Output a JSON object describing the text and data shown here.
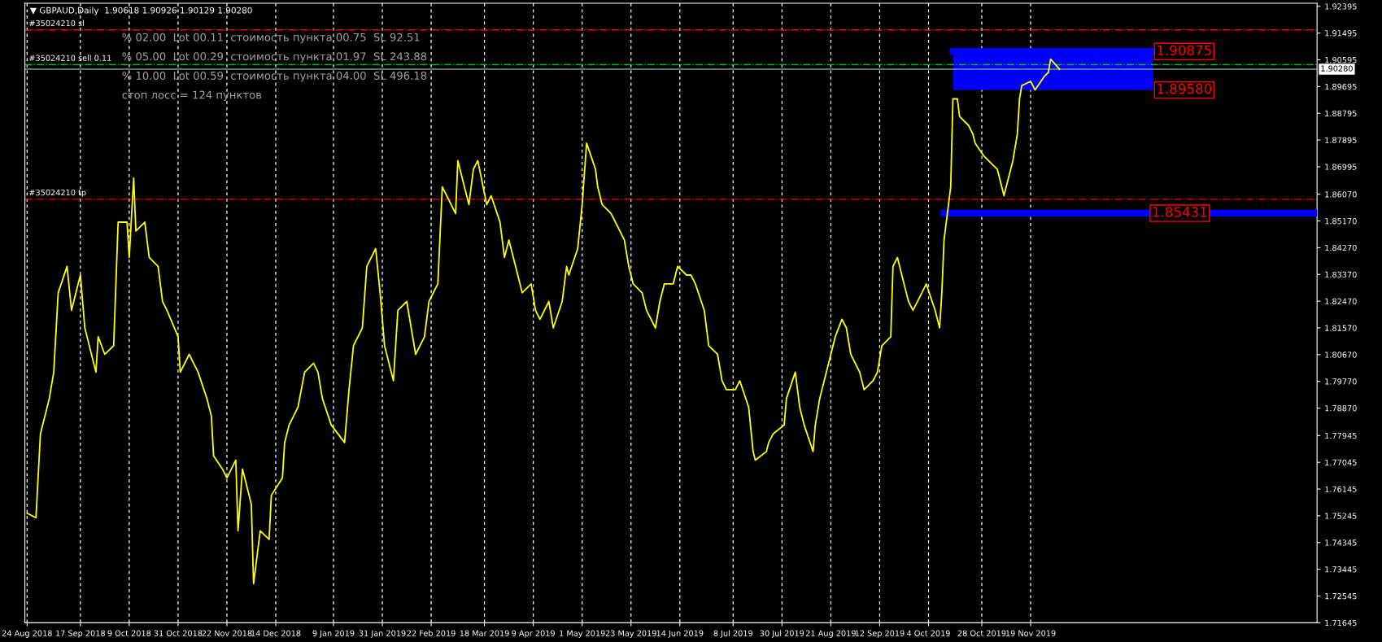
{
  "chart_data": {
    "type": "line",
    "title": "▼ GBPAUD,Daily  1.90618 1.90926 1.90129 1.90280",
    "x": [
      "2018-08-24",
      "2018-08-28",
      "2018-08-30",
      "2018-09-03",
      "2018-09-05",
      "2018-09-07",
      "2018-09-11",
      "2018-09-13",
      "2018-09-17",
      "2018-09-19",
      "2018-09-24",
      "2018-09-25",
      "2018-09-28",
      "2018-10-02",
      "2018-10-04",
      "2018-10-08",
      "2018-10-09",
      "2018-10-11",
      "2018-10-12",
      "2018-10-16",
      "2018-10-18",
      "2018-10-22",
      "2018-10-24",
      "2018-10-26",
      "2018-10-31",
      "2018-11-01",
      "2018-11-05",
      "2018-11-07",
      "2018-11-09",
      "2018-11-13",
      "2018-11-15",
      "2018-11-16",
      "2018-11-20",
      "2018-11-22",
      "2018-11-26",
      "2018-11-27",
      "2018-11-29",
      "2018-12-03",
      "2018-12-04",
      "2018-12-07",
      "2018-12-11",
      "2018-12-12",
      "2018-12-17",
      "2018-12-18",
      "2018-12-20",
      "2018-12-24",
      "2018-12-27",
      "2018-12-31",
      "2019-01-02",
      "2019-01-04",
      "2019-01-08",
      "2019-01-14",
      "2019-01-16",
      "2019-01-18",
      "2019-01-22",
      "2019-01-24",
      "2019-01-28",
      "2019-01-30",
      "2019-02-01",
      "2019-02-05",
      "2019-02-07",
      "2019-02-11",
      "2019-02-13",
      "2019-02-15",
      "2019-02-19",
      "2019-02-21",
      "2019-02-25",
      "2019-02-27",
      "2019-03-01",
      "2019-03-05",
      "2019-03-06",
      "2019-03-11",
      "2019-03-13",
      "2019-03-15",
      "2019-03-19",
      "2019-03-21",
      "2019-03-25",
      "2019-03-27",
      "2019-03-29",
      "2019-04-02",
      "2019-04-04",
      "2019-04-08",
      "2019-04-10",
      "2019-04-12",
      "2019-04-16",
      "2019-04-18",
      "2019-04-22",
      "2019-04-24",
      "2019-04-25",
      "2019-04-29",
      "2019-05-01",
      "2019-05-03",
      "2019-05-07",
      "2019-05-08",
      "2019-05-10",
      "2019-05-14",
      "2019-05-16",
      "2019-05-20",
      "2019-05-22",
      "2019-05-24",
      "2019-05-28",
      "2019-05-30",
      "2019-06-03",
      "2019-06-05",
      "2019-06-07",
      "2019-06-11",
      "2019-06-13",
      "2019-06-17",
      "2019-06-19",
      "2019-06-21",
      "2019-06-25",
      "2019-06-27",
      "2019-07-01",
      "2019-07-03",
      "2019-07-05",
      "2019-07-09",
      "2019-07-11",
      "2019-07-15",
      "2019-07-17",
      "2019-07-18",
      "2019-07-23",
      "2019-07-24",
      "2019-07-26",
      "2019-07-31",
      "2019-08-01",
      "2019-08-05",
      "2019-08-07",
      "2019-08-09",
      "2019-08-13",
      "2019-08-14",
      "2019-08-16",
      "2019-08-20",
      "2019-08-23",
      "2019-08-26",
      "2019-08-28",
      "2019-08-30",
      "2019-09-03",
      "2019-09-05",
      "2019-09-09",
      "2019-09-11",
      "2019-09-13",
      "2019-09-17",
      "2019-09-18",
      "2019-09-20",
      "2019-09-24",
      "2019-09-25",
      "2019-09-27",
      "2019-10-01",
      "2019-10-03",
      "2019-10-07",
      "2019-10-09",
      "2019-10-10",
      "2019-10-11",
      "2019-10-14",
      "2019-10-15",
      "2019-10-17",
      "2019-10-18",
      "2019-10-22",
      "2019-10-24",
      "2019-10-25",
      "2019-10-29",
      "2019-10-31",
      "2019-11-04",
      "2019-11-05",
      "2019-11-07",
      "2019-11-08",
      "2019-11-11",
      "2019-11-13",
      "2019-11-14",
      "2019-11-15",
      "2019-11-19",
      "2019-11-21",
      "2019-11-25",
      "2019-11-27",
      "2019-11-28",
      "2019-12-02"
    ],
    "series": [
      {
        "type": "line",
        "color": "#0000ff",
        "x": [
          "2019-10-15",
          "2020-01-13"
        ],
        "values": [
          1.90875,
          1.90875
        ],
        "lower": [
          1.8958,
          1.8958
        ],
        "upper": [
          1.90875,
          1.90875
        ]
      },
      {
        "type": "line",
        "color": "#0000ff",
        "x": [
          "2019-10-11",
          "2020-03-27"
        ],
        "values": [
          1.85431,
          1.85431
        ]
      },
      {
        "color": "#ffff00",
        "values": [
          1.7533,
          1.7518,
          1.78,
          1.7919,
          1.8008,
          1.8275,
          1.8364,
          1.8216,
          1.8335,
          1.8157,
          1.8008,
          1.8127,
          1.8068,
          1.8097,
          1.8513,
          1.8513,
          1.8394,
          1.8661,
          1.8483,
          1.8513,
          1.8394,
          1.8364,
          1.8246,
          1.8216,
          1.8127,
          1.8008,
          1.8068,
          1.8038,
          1.8008,
          1.7919,
          1.786,
          1.7726,
          1.7682,
          1.7652,
          1.7712,
          1.7474,
          1.7682,
          1.7563,
          1.7296,
          1.7474,
          1.7445,
          1.7593,
          1.7652,
          1.7771,
          1.783,
          1.789,
          1.8008,
          1.8038,
          1.8008,
          1.7919,
          1.783,
          1.7771,
          1.7949,
          1.8097,
          1.8157,
          1.8364,
          1.8424,
          1.8275,
          1.8097,
          1.7979,
          1.8216,
          1.8246,
          1.8157,
          1.8068,
          1.8127,
          1.8246,
          1.8305,
          1.8632,
          1.8602,
          1.8542,
          1.872,
          1.8572,
          1.8691,
          1.872,
          1.8572,
          1.8602,
          1.8513,
          1.8394,
          1.8453,
          1.8335,
          1.8275,
          1.8305,
          1.8216,
          1.8186,
          1.8246,
          1.8157,
          1.8246,
          1.8364,
          1.8335,
          1.8424,
          1.8572,
          1.8779,
          1.8691,
          1.8632,
          1.8572,
          1.8542,
          1.8513,
          1.8453,
          1.8364,
          1.8305,
          1.8275,
          1.8216,
          1.8157,
          1.8246,
          1.8305,
          1.8305,
          1.8364,
          1.8335,
          1.8335,
          1.8305,
          1.8216,
          1.8097,
          1.8068,
          1.7979,
          1.7949,
          1.7949,
          1.7979,
          1.789,
          1.7741,
          1.7712,
          1.7741,
          1.7771,
          1.78,
          1.783,
          1.7919,
          1.8008,
          1.789,
          1.783,
          1.7741,
          1.783,
          1.7919,
          1.8038,
          1.8127,
          1.8186,
          1.8157,
          1.8068,
          1.8008,
          1.7949,
          1.7979,
          1.8008,
          1.8097,
          1.8127,
          1.8364,
          1.8394,
          1.8275,
          1.8246,
          1.8216,
          1.8275,
          1.8305,
          1.8216,
          1.8157,
          1.8275,
          1.8453,
          1.8632,
          1.8928,
          1.8928,
          1.8869,
          1.8839,
          1.8809,
          1.8779,
          1.8735,
          1.872,
          1.8691,
          1.8661,
          1.8602,
          1.8632,
          1.872,
          1.8809,
          1.8928,
          1.8973,
          1.8987,
          1.8958,
          1.9002,
          1.9017,
          1.9062,
          1.9028
        ]
      }
    ],
    "xlim": [
      "2018-08-23",
      "2020-03-27"
    ],
    "ylim": [
      1.71645,
      1.925
    ],
    "xticks": [
      {
        "value": "2018-08-24",
        "label": "24 Aug 2018"
      },
      {
        "value": "2018-09-17",
        "label": "17 Sep 2018"
      },
      {
        "value": "2018-10-09",
        "label": "9 Oct 2018"
      },
      {
        "value": "2018-10-31",
        "label": "31 Oct 2018"
      },
      {
        "value": "2018-11-22",
        "label": "22 Nov 2018"
      },
      {
        "value": "2018-12-14",
        "label": "14 Dec 2018"
      },
      {
        "value": "2019-01-09",
        "label": "9 Jan 2019"
      },
      {
        "value": "2019-01-31",
        "label": "31 Jan 2019"
      },
      {
        "value": "2019-02-22",
        "label": "22 Feb 2019"
      },
      {
        "value": "2019-03-18",
        "label": "18 Mar 2019"
      },
      {
        "value": "2019-04-09",
        "label": "9 Apr 2019"
      },
      {
        "value": "2019-05-01",
        "label": "1 May 2019"
      },
      {
        "value": "2019-05-23",
        "label": "23 May 2019"
      },
      {
        "value": "2019-06-14",
        "label": "14 Jun 2019"
      },
      {
        "value": "2019-07-08",
        "label": "8 Jul 2019"
      },
      {
        "value": "2019-07-30",
        "label": "30 Jul 2019"
      },
      {
        "value": "2019-08-21",
        "label": "21 Aug 2019"
      },
      {
        "value": "2019-09-12",
        "label": "12 Sep 2019"
      },
      {
        "value": "2019-10-04",
        "label": "4 Oct 2019"
      },
      {
        "value": "2019-10-28",
        "label": "28 Oct 2019"
      },
      {
        "value": "2019-11-19",
        "label": "19 Nov 2019"
      }
    ],
    "yticks": [
      1.92395,
      1.91495,
      1.90595,
      1.89695,
      1.88795,
      1.87895,
      1.86995,
      {
        "value": 1.8607,
        "label": "1.86070"
      },
      {
        "value": 1.8517,
        "label": "1.85170"
      },
      {
        "value": 1.8427,
        "label": "1.84270"
      },
      {
        "value": 1.8337,
        "label": "1.83370"
      },
      {
        "value": 1.8247,
        "label": "1.82470"
      },
      {
        "value": 1.8157,
        "label": "1.81570"
      },
      {
        "value": 1.8067,
        "label": "1.80670"
      },
      {
        "value": 1.7977,
        "label": "1.79770"
      },
      {
        "value": 1.7887,
        "label": "1.78870"
      },
      1.77945,
      1.77045,
      1.76145,
      1.75245,
      1.74345,
      1.73445,
      1.72545,
      1.71645
    ],
    "grid": "x",
    "marker": "none",
    "line_style": "solid",
    "ref_lines": [
      {
        "axis": "y",
        "value": 1.916,
        "label": "#35024210 sl",
        "color": "#ff0000",
        "line_style": "dashdot"
      },
      {
        "axis": "y",
        "value": 1.9043,
        "label": "#35024210 sell 0.11",
        "color": "#00c000",
        "line_style": "dashdot"
      },
      {
        "axis": "y",
        "value": 1.9028,
        "label": "1.90280",
        "color": "#8090a0",
        "line_style": "solid"
      },
      {
        "axis": "y",
        "value": 1.859,
        "label": "#35024210 tp",
        "color": "#ff0000",
        "line_style": "dashdot"
      }
    ],
    "annotations": [
      "% 02.00  Lot 00.11  стоимость пункта 00.75  SL 92.51",
      "% 05.00  Lot 00.29  стоимость пункта 01.97  SL 243.88",
      "% 10.00  Lot 00.59  стоимость пункта 04.00  SL 496.18",
      "стоп лосс = 124 пунктов",
      {
        "text": "1.90875",
        "x": "2020-01-13",
        "y": 1.90875
      },
      {
        "text": "1.89580",
        "x": "2020-01-13",
        "y": 1.8958
      },
      {
        "text": "1.85431",
        "x": "2020-01-11",
        "y": 1.85431
      }
    ]
  }
}
